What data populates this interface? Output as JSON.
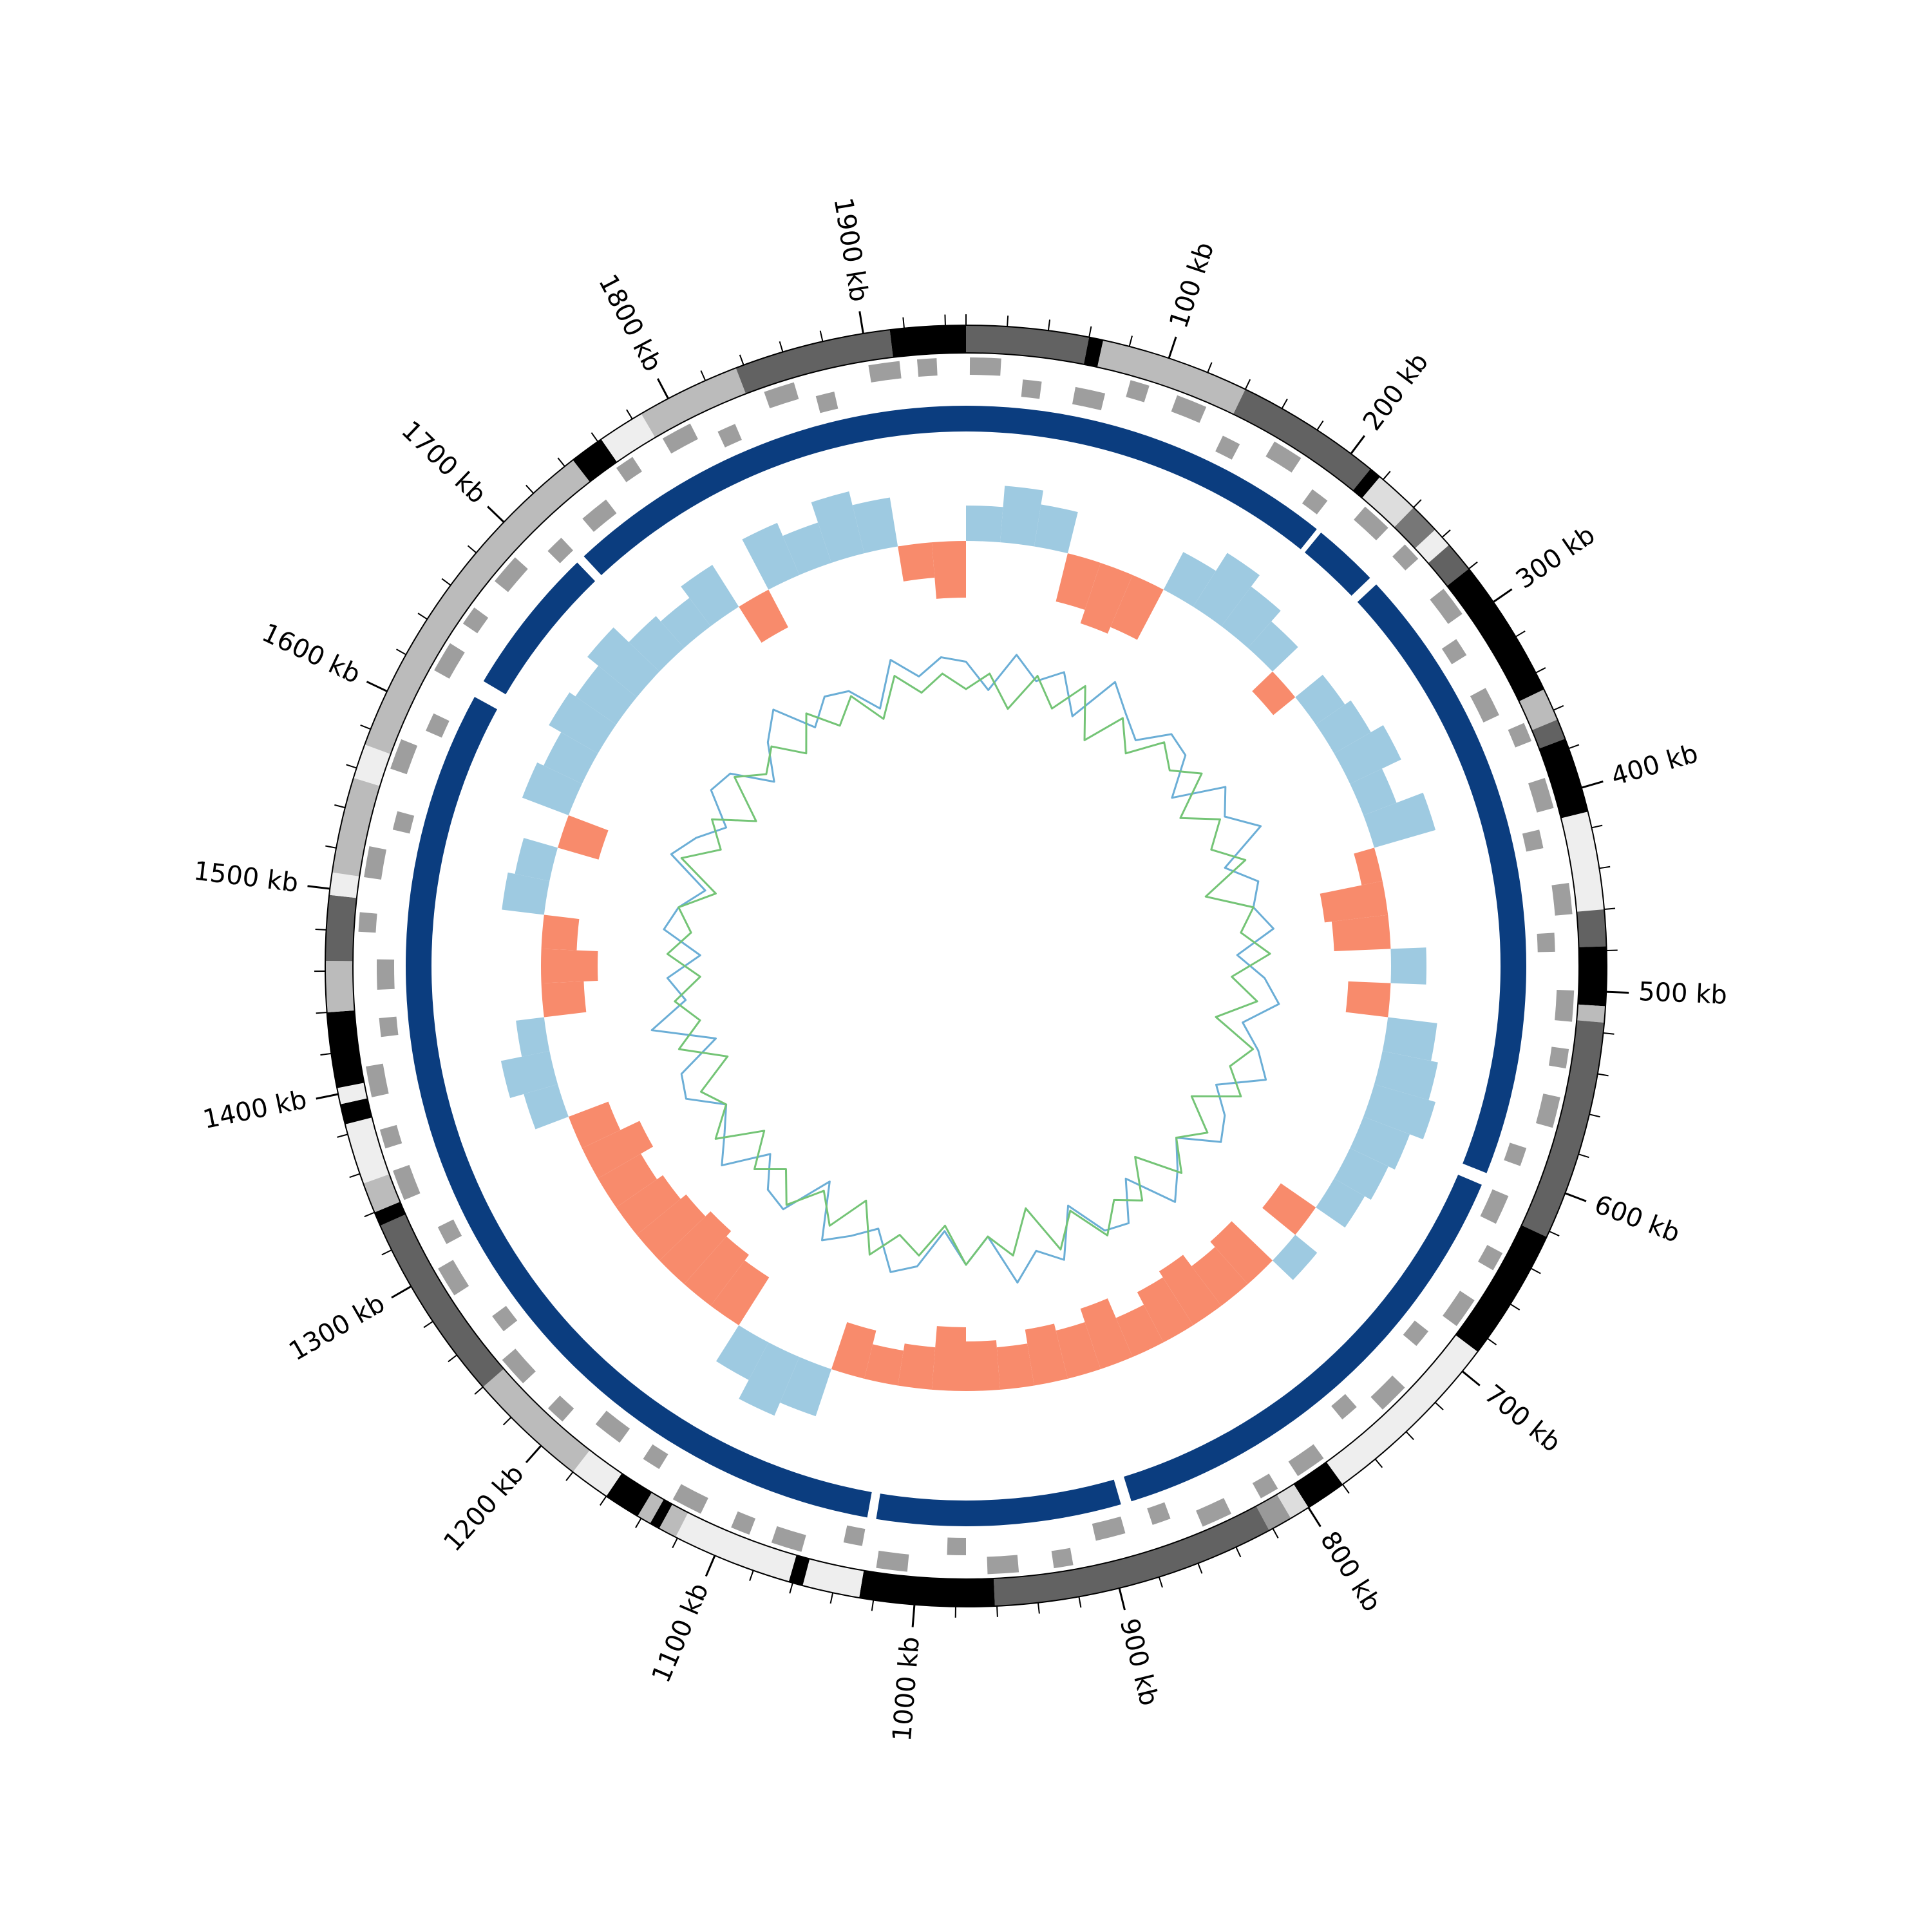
{
  "chart_data": {
    "type": "circos",
    "xlim": [
      0,
      1950
    ],
    "xticks": [
      {
        "value": 100,
        "label": "100 kb"
      },
      {
        "value": 200,
        "label": "200 kb"
      },
      {
        "value": 300,
        "label": "300 kb"
      },
      {
        "value": 400,
        "label": "400 kb"
      },
      {
        "value": 500,
        "label": "500 kb"
      },
      {
        "value": 600,
        "label": "600 kb"
      },
      {
        "value": 700,
        "label": "700 kb"
      },
      {
        "value": 800,
        "label": "800 kb"
      },
      {
        "value": 900,
        "label": "900 kb"
      },
      {
        "value": 1000,
        "label": "1000 kb"
      },
      {
        "value": 1100,
        "label": "1100 kb"
      },
      {
        "value": 1200,
        "label": "1200 kb"
      },
      {
        "value": 1300,
        "label": "1300 kb"
      },
      {
        "value": 1400,
        "label": "1400 kb"
      },
      {
        "value": 1500,
        "label": "1500 kb"
      },
      {
        "value": 1600,
        "label": "1600 kb"
      },
      {
        "value": 1700,
        "label": "1700 kb"
      },
      {
        "value": 1800,
        "label": "1800 kb"
      },
      {
        "value": 1900,
        "label": "1900 kb"
      }
    ],
    "minor_xticks": [
      0,
      20,
      40,
      60,
      80,
      100,
      120,
      140,
      160,
      180,
      200,
      220,
      240,
      260,
      280,
      300,
      320,
      340,
      360,
      380,
      400,
      420,
      440,
      460,
      480,
      500,
      520,
      540,
      560,
      580,
      600,
      620,
      640,
      660,
      680,
      700,
      720,
      740,
      760,
      780,
      800,
      820,
      840,
      860,
      880,
      900,
      920,
      940,
      960,
      980,
      1000,
      1020,
      1040,
      1060,
      1080,
      1100,
      1120,
      1140,
      1160,
      1180,
      1200,
      1220,
      1240,
      1260,
      1280,
      1300,
      1320,
      1340,
      1360,
      1380,
      1400,
      1420,
      1440,
      1460,
      1480,
      1500,
      1520,
      1540,
      1560,
      1580,
      1600,
      1620,
      1640,
      1660,
      1680,
      1700,
      1720,
      1740,
      1760,
      1780,
      1800,
      1820,
      1840,
      1860,
      1880,
      1900,
      1920,
      1940
    ],
    "bands": {
      "starts": [
        0,
        60,
        67,
        140,
        212,
        218,
        240,
        255,
        265,
        280,
        349,
        365,
        375,
        412,
        460,
        478,
        507,
        515,
        623,
        688,
        780,
        800,
        810,
        822,
        961,
        1027,
        1055,
        1062,
        1121,
        1130,
        1135,
        1142,
        1160,
        1180,
        1240,
        1333,
        1340,
        1355,
        1385,
        1395,
        1403,
        1440,
        1465,
        1497,
        1508,
        1555,
        1572,
        1745,
        1762,
        1785,
        1836,
        1913
      ],
      "ends": [
        60,
        67,
        140,
        212,
        218,
        240,
        255,
        265,
        280,
        349,
        365,
        375,
        412,
        460,
        478,
        507,
        515,
        623,
        688,
        780,
        800,
        810,
        822,
        961,
        1027,
        1055,
        1062,
        1121,
        1130,
        1135,
        1142,
        1160,
        1180,
        1240,
        1333,
        1340,
        1355,
        1385,
        1395,
        1403,
        1440,
        1465,
        1497,
        1508,
        1555,
        1572,
        1745,
        1762,
        1785,
        1836,
        1913,
        1950
      ],
      "colors": [
        "#626262",
        "#000000",
        "#bbbbbb",
        "#626262",
        "#000000",
        "#dddddd",
        "#777777",
        "#eeeeee",
        "#626262",
        "#000000",
        "#bbbbbb",
        "#626262",
        "#000000",
        "#eeeeee",
        "#626262",
        "#000000",
        "#bbbbbb",
        "#626262",
        "#000000",
        "#eeeeee",
        "#000000",
        "#dddddd",
        "#999999",
        "#626262",
        "#000000",
        "#eeeeee",
        "#000000",
        "#eeeeee",
        "#bbbbbb",
        "#000000",
        "#bbbbbb",
        "#000000",
        "#eeeeee",
        "#bbbbbb",
        "#626262",
        "#000000",
        "#bbbbbb",
        "#eeeeee",
        "#000000",
        "#eeeeee",
        "#000000",
        "#bbbbbb",
        "#626262",
        "#eeeeee",
        "#bbbbbb",
        "#eeeeee",
        "#bbbbbb",
        "#000000",
        "#eeeeee",
        "#bbbbbb",
        "#626262",
        "#000000"
      ]
    },
    "genes": {
      "color": "#9e9e9e",
      "starts": [
        2,
        30,
        58,
        85,
        110,
        140,
        165,
        195,
        222,
        250,
        280,
        305,
        335,
        360,
        390,
        415,
        445,
        470,
        500,
        530,
        555,
        585,
        612,
        640,
        668,
        695,
        725,
        750,
        780,
        808,
        835,
        865,
        890,
        920,
        948,
        975,
        1005,
        1030,
        1060,
        1088,
        1115,
        1145,
        1170,
        1200,
        1228,
        1255,
        1285,
        1310,
        1340,
        1368,
        1395,
        1425,
        1450,
        1480,
        1508,
        1535,
        1565,
        1590,
        1620,
        1648,
        1675,
        1705,
        1730,
        1760,
        1788,
        1815,
        1845,
        1870,
        1900,
        1925
      ],
      "ends": [
        18,
        40,
        74,
        95,
        126,
        150,
        181,
        205,
        238,
        260,
        296,
        315,
        351,
        370,
        406,
        425,
        461,
        480,
        516,
        540,
        571,
        595,
        628,
        650,
        684,
        705,
        741,
        760,
        796,
        818,
        851,
        875,
        906,
        930,
        964,
        985,
        1021,
        1040,
        1076,
        1098,
        1131,
        1155,
        1186,
        1210,
        1244,
        1265,
        1301,
        1320,
        1356,
        1378,
        1411,
        1435,
        1466,
        1490,
        1524,
        1545,
        1581,
        1600,
        1636,
        1658,
        1691,
        1715,
        1746,
        1770,
        1804,
        1825,
        1861,
        1880,
        1916,
        1935
      ],
      "strands": [
        1,
        -1,
        -1,
        1,
        1,
        -1,
        1,
        -1,
        1,
        1,
        1,
        -1,
        -1,
        1,
        1,
        -1,
        1,
        -1,
        1,
        1,
        1,
        -1,
        -1,
        1,
        1,
        -1,
        1,
        -1,
        1,
        1,
        1,
        -1,
        -1,
        1,
        1,
        -1,
        1,
        -1,
        1,
        1,
        1,
        -1,
        -1,
        1,
        1,
        -1,
        1,
        -1,
        1,
        1,
        1,
        -1,
        -1,
        1,
        1,
        -1,
        1,
        -1,
        1,
        1,
        1,
        -1,
        -1,
        1,
        1,
        -1,
        1,
        -1,
        1,
        1
      ]
    },
    "contigs": {
      "color": "#0b3d7f",
      "starts": [
        0,
        213,
        255,
        612,
        888,
        1030,
        1628,
        1717
      ],
      "ends": [
        210,
        250,
        605,
        882,
        1025,
        1618,
        1712,
        1950
      ]
    },
    "x": [
      0,
      25,
      50,
      75,
      100,
      125,
      150,
      175,
      200,
      225,
      250,
      275,
      300,
      325,
      350,
      375,
      400,
      425,
      450,
      475,
      500,
      525,
      550,
      575,
      600,
      625,
      650,
      675,
      700,
      725,
      750,
      775,
      800,
      825,
      850,
      875,
      900,
      925,
      950,
      975,
      1000,
      1025,
      1050,
      1075,
      1100,
      1125,
      1150,
      1175,
      1200,
      1225,
      1250,
      1275,
      1300,
      1325,
      1350,
      1375,
      1400,
      1425,
      1450,
      1475,
      1500,
      1525,
      1550,
      1575,
      1600,
      1625,
      1650,
      1675,
      1700,
      1725,
      1750,
      1775,
      1800,
      1825,
      1850,
      1875,
      1900,
      1925
    ],
    "skew": {
      "positive_color": "#9ecae1",
      "negative_color": "#f88b6c",
      "values": [
        0.5,
        0.8,
        0.6,
        -0.7,
        -0.9,
        -0.8,
        0.6,
        0.9,
        0.7,
        0.5,
        -0.4,
        0.5,
        0.6,
        0.8,
        0.5,
        0.9,
        -0.3,
        -0.9,
        -0.8,
        0.5,
        -0.6,
        0.7,
        0.8,
        0.9,
        0.7,
        0.6,
        0.5,
        -0.6,
        0.4,
        -0.8,
        -0.7,
        -0.9,
        -0.8,
        -0.6,
        -0.9,
        -0.7,
        -0.8,
        -0.6,
        -0.7,
        -0.9,
        -0.6,
        -0.5,
        -0.7,
        0.7,
        0.9,
        0.6,
        -0.8,
        -0.9,
        -1.0,
        -0.9,
        -0.8,
        -0.7,
        -0.9,
        -0.6,
        0.5,
        0.7,
        0.4,
        -0.6,
        -0.8,
        -0.5,
        0.6,
        0.5,
        -0.6,
        0.7,
        0.6,
        0.8,
        0.7,
        0.9,
        0.6,
        0.5,
        0.7,
        -0.6,
        0.8,
        0.6,
        0.9,
        0.7,
        -0.5,
        -0.8
      ]
    },
    "series": [
      {
        "color": "#6baed6",
        "values": [
          0.3,
          -0.2,
          0.5,
          0.1,
          0.4,
          -0.3,
          0.6,
          0.2,
          -0.1,
          0.4,
          0.3,
          -0.4,
          0.5,
          0.2,
          0.7,
          -0.2,
          0.3,
          0.1,
          0.4,
          -0.3,
          0.2,
          0.5,
          -0.1,
          0.3,
          0.6,
          -0.2,
          0.2,
          0.4,
          -0.3,
          0.1,
          0.5,
          -0.4,
          0.3,
          0.2,
          -0.5,
          0.4,
          0.1,
          0.6,
          -0.3,
          0.2,
          -0.4,
          0.3,
          0.5,
          -0.2,
          0.1,
          0.4,
          -0.6,
          0.3,
          0.2,
          -0.3,
          0.5,
          0.1,
          -0.2,
          0.4,
          0.3,
          -0.5,
          0.6,
          -0.1,
          0.2,
          -0.4,
          0.3,
          0.1,
          -0.3,
          0.5,
          0.2,
          -0.2,
          0.4,
          0.3,
          -0.4,
          0.2,
          0.6,
          -0.1,
          0.3,
          0.2,
          -0.3,
          0.5,
          0.1,
          0.4
        ]
      },
      {
        "color": "#74c476",
        "values": [
          -0.2,
          0.1,
          -0.5,
          0.2,
          -0.3,
          0.3,
          -0.6,
          0.1,
          -0.4,
          0.2,
          -0.1,
          0.3,
          -0.5,
          0.1,
          -0.3,
          0.2,
          -0.7,
          0.1,
          -0.2,
          0.3,
          -0.4,
          0.1,
          -0.6,
          0.2,
          -0.1,
          0.3,
          -0.5,
          0.1,
          -0.3,
          0.2,
          -0.6,
          0.1,
          -0.2,
          0.3,
          -0.4,
          0.2,
          -0.7,
          0.1,
          -0.3,
          0.2,
          -0.5,
          0.1,
          -0.2,
          0.3,
          -0.6,
          0.1,
          -0.4,
          0.2,
          -0.3,
          0.1,
          -0.5,
          0.3,
          -0.2,
          0.1,
          -0.6,
          0.2,
          -0.3,
          0.1,
          -0.4,
          0.2,
          -0.2,
          0.1,
          -0.5,
          0.3,
          -0.3,
          0.1,
          -0.6,
          0.2,
          -0.2,
          0.1,
          -0.4,
          0.2,
          -0.3,
          0.1,
          -0.5,
          0.2,
          -0.2,
          0.1
        ]
      }
    ]
  }
}
